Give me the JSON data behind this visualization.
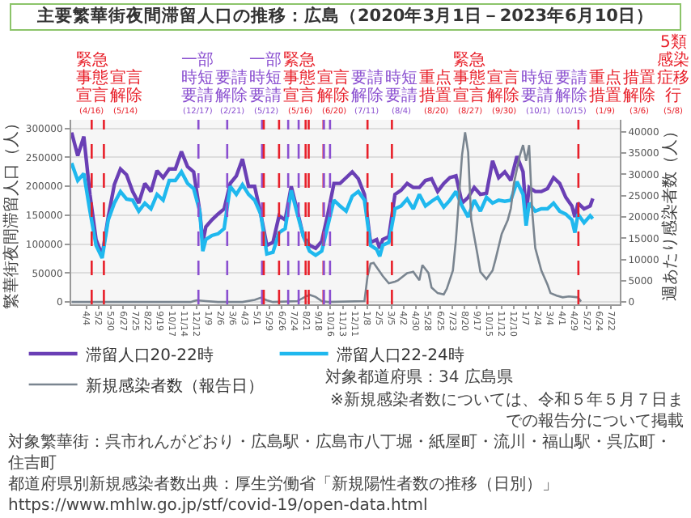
{
  "chart_data": {
    "type": "line",
    "title": "主要繁華街夜間滞留人口の推移：広島（2020年3月1日－2023年6月10日）",
    "ylabel": "繁華街夜間滞留人口（人）",
    "y2label": "週あたり感染者数（人）",
    "x": [
      "2020-03-01",
      "2020-03-15",
      "2020-03-29",
      "2020-04-12",
      "2020-04-26",
      "2020-05-10",
      "2020-05-24",
      "2020-06-07",
      "2020-06-21",
      "2020-07-05",
      "2020-07-19",
      "2020-08-02",
      "2020-08-16",
      "2020-08-30",
      "2020-09-13",
      "2020-09-27",
      "2020-10-11",
      "2020-10-25",
      "2020-11-08",
      "2020-11-22",
      "2020-12-06",
      "2020-12-20",
      "2020-12-27",
      "2021-01-03",
      "2021-01-17",
      "2021-01-31",
      "2021-02-14",
      "2021-02-28",
      "2021-03-14",
      "2021-03-28",
      "2021-04-11",
      "2021-04-25",
      "2021-05-09",
      "2021-05-23",
      "2021-06-06",
      "2021-06-20",
      "2021-07-04",
      "2021-07-18",
      "2021-08-01",
      "2021-08-15",
      "2021-08-29",
      "2021-09-12",
      "2021-09-26",
      "2021-10-10",
      "2021-10-24",
      "2021-11-07",
      "2021-11-21",
      "2021-12-05",
      "2021-12-19",
      "2022-01-02",
      "2022-01-16",
      "2022-01-30",
      "2022-02-06",
      "2022-02-13",
      "2022-02-27",
      "2022-03-13",
      "2022-03-27",
      "2022-04-10",
      "2022-04-24",
      "2022-05-08",
      "2022-05-22",
      "2022-06-05",
      "2022-06-19",
      "2022-07-03",
      "2022-07-17",
      "2022-07-31",
      "2022-08-14",
      "2022-08-28",
      "2022-09-11",
      "2022-09-25",
      "2022-10-09",
      "2022-10-23",
      "2022-11-06",
      "2022-11-20",
      "2022-12-04",
      "2022-12-18",
      "2023-01-01",
      "2023-01-08",
      "2023-01-15",
      "2023-01-29",
      "2023-02-12",
      "2023-02-26",
      "2023-03-12",
      "2023-03-26",
      "2023-04-09",
      "2023-04-23",
      "2023-04-30",
      "2023-05-07",
      "2023-05-21",
      "2023-06-04",
      "2023-06-10"
    ],
    "series": [
      {
        "name": "滞留人口20-22時",
        "color": "#6a3fb5",
        "values": [
          293000,
          253000,
          286000,
          186000,
          108000,
          81000,
          147000,
          203000,
          230000,
          220000,
          191000,
          171000,
          205000,
          191000,
          227000,
          215000,
          230000,
          230000,
          260000,
          234000,
          225000,
          157000,
          103000,
          130000,
          142000,
          152000,
          161000,
          205000,
          218000,
          247000,
          200000,
          200000,
          152000,
          98000,
          103000,
          149000,
          142000,
          200000,
          157000,
          113000,
          98000,
          93000,
          105000,
          152000,
          205000,
          205000,
          215000,
          225000,
          213000,
          186000,
          103000,
          108000,
          93000,
          108000,
          113000,
          186000,
          193000,
          205000,
          198000,
          198000,
          210000,
          213000,
          191000,
          205000,
          215000,
          218000,
          171000,
          181000,
          198000,
          186000,
          188000,
          244000,
          215000,
          225000,
          210000,
          252000,
          225000,
          152000,
          198000,
          191000,
          191000,
          196000,
          215000,
          205000,
          181000,
          166000,
          147000,
          171000,
          161000,
          166000,
          179000
        ]
      },
      {
        "name": "滞留人口22-24時",
        "color": "#1fb8ee",
        "values": [
          240000,
          210000,
          222000,
          157000,
          98000,
          76000,
          142000,
          171000,
          191000,
          178000,
          176000,
          157000,
          171000,
          161000,
          186000,
          176000,
          210000,
          210000,
          225000,
          205000,
          196000,
          157000,
          88000,
          108000,
          115000,
          118000,
          127000,
          200000,
          186000,
          203000,
          186000,
          176000,
          152000,
          83000,
          86000,
          120000,
          127000,
          193000,
          152000,
          113000,
          88000,
          81000,
          88000,
          132000,
          176000,
          166000,
          157000,
          183000,
          191000,
          176000,
          98000,
          91000,
          79000,
          98000,
          103000,
          161000,
          166000,
          178000,
          161000,
          186000,
          166000,
          174000,
          181000,
          164000,
          176000,
          191000,
          166000,
          147000,
          176000,
          157000,
          181000,
          171000,
          176000,
          174000,
          176000,
          208000,
          186000,
          132000,
          171000,
          157000,
          161000,
          161000,
          171000,
          157000,
          152000,
          142000,
          120000,
          152000,
          137000,
          149000,
          144000
        ]
      },
      {
        "name": "新規感染者数（報告日）",
        "color": "#7a8590",
        "axis": "y2",
        "x": [
          "2020-03-01",
          "2020-11-29",
          "2020-12-06",
          "2020-12-13",
          "2021-01-03",
          "2021-01-31",
          "2021-03-28",
          "2021-04-25",
          "2021-05-09",
          "2021-05-23",
          "2021-06-06",
          "2021-08-01",
          "2021-08-15",
          "2021-08-29",
          "2021-09-12",
          "2021-09-26",
          "2021-10-10",
          "2022-01-02",
          "2022-01-09",
          "2022-01-16",
          "2022-01-23",
          "2022-02-13",
          "2022-02-27",
          "2022-03-13",
          "2022-03-20",
          "2022-04-10",
          "2022-04-24",
          "2022-05-01",
          "2022-05-08",
          "2022-05-15",
          "2022-05-29",
          "2022-06-05",
          "2022-06-19",
          "2022-07-03",
          "2022-07-10",
          "2022-07-24",
          "2022-07-31",
          "2022-08-14",
          "2022-08-21",
          "2022-08-28",
          "2022-09-04",
          "2022-09-18",
          "2022-09-25",
          "2022-10-09",
          "2022-10-23",
          "2022-10-30",
          "2022-11-13",
          "2022-11-27",
          "2022-12-04",
          "2022-12-11",
          "2022-12-25",
          "2023-01-01",
          "2023-01-08",
          "2023-01-15",
          "2023-01-22",
          "2023-01-29",
          "2023-02-12",
          "2023-02-26",
          "2023-03-05",
          "2023-03-19",
          "2023-04-02",
          "2023-04-16",
          "2023-05-07",
          "2023-05-14"
        ],
        "values": [
          0,
          0,
          200,
          400,
          200,
          0,
          0,
          500,
          1000,
          400,
          0,
          200,
          1000,
          1700,
          1200,
          200,
          0,
          200,
          6000,
          9000,
          9200,
          6100,
          4400,
          4800,
          5100,
          6800,
          7100,
          6100,
          5100,
          8700,
          6800,
          3400,
          2100,
          1800,
          3100,
          7400,
          14700,
          34600,
          39900,
          35200,
          19300,
          11400,
          7100,
          5400,
          7400,
          10100,
          16000,
          19300,
          22000,
          27900,
          34600,
          36900,
          33200,
          36900,
          21300,
          12700,
          7400,
          4100,
          2100,
          1500,
          1100,
          1300,
          1100,
          100
        ]
      }
    ],
    "xlim": [
      "2020-02-29",
      "2023-08-11"
    ],
    "xticks": [
      {
        "value": "2020-04-04",
        "label": "4/4"
      },
      {
        "value": "2020-05-02",
        "label": "5/2"
      },
      {
        "value": "2020-05-30",
        "label": "5/30"
      },
      {
        "value": "2020-06-27",
        "label": "6/27"
      },
      {
        "value": "2020-07-25",
        "label": "7/25"
      },
      {
        "value": "2020-08-22",
        "label": "8/22"
      },
      {
        "value": "2020-09-19",
        "label": "9/19"
      },
      {
        "value": "2020-10-17",
        "label": "10/17"
      },
      {
        "value": "2020-11-14",
        "label": "11/14"
      },
      {
        "value": "2020-12-12",
        "label": "12/12"
      },
      {
        "value": "2021-01-09",
        "label": "1/9"
      },
      {
        "value": "2021-02-06",
        "label": "2/6"
      },
      {
        "value": "2021-03-06",
        "label": "3/6"
      },
      {
        "value": "2021-04-03",
        "label": "4/3"
      },
      {
        "value": "2021-05-01",
        "label": "5/1"
      },
      {
        "value": "2021-05-29",
        "label": "5/29"
      },
      {
        "value": "2021-06-26",
        "label": "6/26"
      },
      {
        "value": "2021-07-24",
        "label": "7/24"
      },
      {
        "value": "2021-08-21",
        "label": "8/21"
      },
      {
        "value": "2021-09-18",
        "label": "9/18"
      },
      {
        "value": "2021-10-16",
        "label": "10/16"
      },
      {
        "value": "2021-11-13",
        "label": "11/13"
      },
      {
        "value": "2021-12-11",
        "label": "12/11"
      },
      {
        "value": "2022-01-08",
        "label": "1/8"
      },
      {
        "value": "2022-02-05",
        "label": "2/5"
      },
      {
        "value": "2022-03-05",
        "label": "3/5"
      },
      {
        "value": "2022-04-02",
        "label": "4/2"
      },
      {
        "value": "2022-04-30",
        "label": "4/30"
      },
      {
        "value": "2022-05-28",
        "label": "5/28"
      },
      {
        "value": "2022-06-25",
        "label": "6/25"
      },
      {
        "value": "2022-07-23",
        "label": "7/23"
      },
      {
        "value": "2022-08-20",
        "label": "8/20"
      },
      {
        "value": "2022-09-17",
        "label": "9/17"
      },
      {
        "value": "2022-10-15",
        "label": "10/15"
      },
      {
        "value": "2022-11-12",
        "label": "11/12"
      },
      {
        "value": "2022-12-10",
        "label": "12/10"
      },
      {
        "value": "2023-01-07",
        "label": "1/7"
      },
      {
        "value": "2023-02-04",
        "label": "2/4"
      },
      {
        "value": "2023-03-04",
        "label": "3/4"
      },
      {
        "value": "2023-04-01",
        "label": "4/1"
      },
      {
        "value": "2023-04-29",
        "label": "4/29"
      },
      {
        "value": "2023-05-27",
        "label": "5/27"
      },
      {
        "value": "2023-06-24",
        "label": "6/24"
      },
      {
        "value": "2023-07-22",
        "label": "7/22"
      }
    ],
    "ylim": [
      -4000,
      315000
    ],
    "yticks": [
      0,
      50000,
      100000,
      150000,
      200000,
      250000,
      300000
    ],
    "y2lim": [
      -544,
      42836
    ],
    "y2ticks": [
      0,
      5000,
      10000,
      15000,
      20000,
      25000,
      30000,
      35000,
      40000
    ],
    "ref_lines": [
      {
        "axis": "x",
        "value": "2020-04-16",
        "label": "緊急事態宣言(4/16)",
        "color": "#e8202a",
        "line_style": "dashed"
      },
      {
        "axis": "x",
        "value": "2020-05-14",
        "label": "宣言解除(5/14)",
        "color": "#e8202a",
        "line_style": "dashed"
      },
      {
        "axis": "x",
        "value": "2020-12-17",
        "label": "一部時短要請(12/17)",
        "color": "#8a4fd0",
        "line_style": "dashed"
      },
      {
        "axis": "x",
        "value": "2021-02-21",
        "label": "要請解除(2/21)",
        "color": "#8a4fd0",
        "line_style": "dashed"
      },
      {
        "axis": "x",
        "value": "2021-05-12",
        "label": "一部時短要請(5/12)",
        "color": "#8a4fd0",
        "line_style": "dashed"
      },
      {
        "axis": "x",
        "value": "2021-05-16",
        "label": "緊急事態宣言(5/16)",
        "color": "#e8202a",
        "line_style": "dashed"
      },
      {
        "axis": "x",
        "value": "2021-06-20",
        "label": "宣言解除(6/20)",
        "color": "#e8202a",
        "line_style": "dashed"
      },
      {
        "axis": "x",
        "value": "2021-07-11",
        "label": "要請解除(7/11)",
        "color": "#8a4fd0",
        "line_style": "dashed"
      },
      {
        "axis": "x",
        "value": "2021-08-04",
        "label": "時短要請(8/4)",
        "color": "#8a4fd0",
        "line_style": "dashed"
      },
      {
        "axis": "x",
        "value": "2021-08-20",
        "label": "重点措置(8/20)",
        "color": "#e8202a",
        "line_style": "dashed"
      },
      {
        "axis": "x",
        "value": "2021-08-27",
        "label": "緊急事態宣言(8/27)",
        "color": "#e8202a",
        "line_style": "dashed"
      },
      {
        "axis": "x",
        "value": "2021-09-30",
        "label": "宣言解除(9/30)",
        "color": "#e8202a",
        "line_style": "dashed"
      },
      {
        "axis": "x",
        "value": "2021-10-01",
        "label": "時短要請(10/1)",
        "color": "#8a4fd0",
        "line_style": "dashed"
      },
      {
        "axis": "x",
        "value": "2021-10-15",
        "label": "要請解除(10/15)",
        "color": "#8a4fd0",
        "line_style": "dashed"
      },
      {
        "axis": "x",
        "value": "2022-01-09",
        "label": "重点措置(1/9)",
        "color": "#e8202a",
        "line_style": "dashed"
      },
      {
        "axis": "x",
        "value": "2022-03-06",
        "label": "措置解除(3/6)",
        "color": "#e8202a",
        "line_style": "dashed"
      },
      {
        "axis": "x",
        "value": "2023-05-08",
        "label": "5類感染症移行(5/8)",
        "color": "#e8202a",
        "line_style": "dashed"
      }
    ],
    "annotations": [
      "対象都道府県：34 広島県",
      "対象繁華街：呉市れんがどおり・広島駅・広島市八丁堀・紙屋町・流川・福山駅・呉広町・住吉町",
      "都道府県別新規感染者数出典：厚生労働省「新規陽性者数の推移（日別）」 https://www.mhlw.go.jp/stf/covid-19/open-data.html",
      "※新規感染者数については、令和５年５月７日までの報告分について掲載"
    ],
    "grid": "y",
    "legend": "bottom"
  }
}
